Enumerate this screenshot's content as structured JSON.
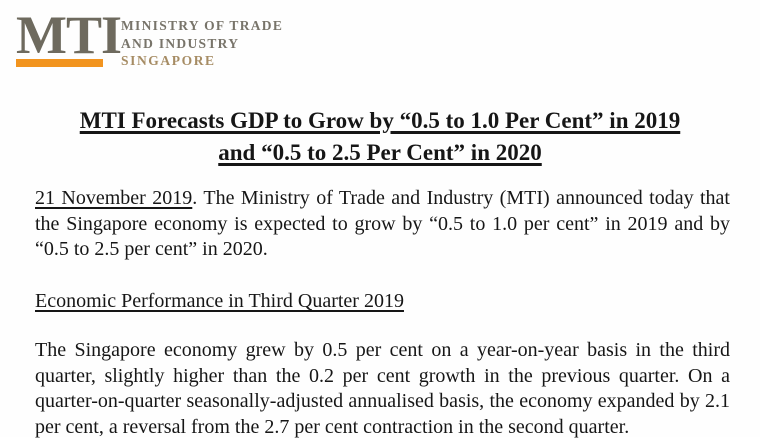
{
  "logo": {
    "acronym": "MTI",
    "name_line1": "MINISTRY OF TRADE",
    "name_line2": "AND INDUSTRY",
    "country": "SINGAPORE",
    "colors": {
      "bar": "#f2941f",
      "acronym": "#6e6a5e",
      "ministry_text": "#78746a",
      "country_text": "#a68c64"
    }
  },
  "document": {
    "title_line1": "MTI Forecasts GDP to Grow by “0.5 to 1.0 Per Cent” in 2019",
    "title_line2": "and “0.5 to 2.5 Per Cent” in 2020",
    "date": "21 November 2019",
    "lead_text": ". The Ministry of Trade and Industry (MTI) announced today that the Singapore economy is expected to grow by “0.5 to 1.0 per cent” in 2019 and by “0.5 to 2.5 per cent” in 2020.",
    "section_heading": "Economic Performance in Third Quarter 2019",
    "body_text": "The Singapore economy grew by 0.5 per cent on a year-on-year basis in the third quarter, slightly higher than the 0.2 per cent growth in the previous quarter. On a quarter-on-quarter seasonally-adjusted annualised basis, the economy expanded by 2.1 per cent, a reversal from the 2.7 per cent contraction in the second quarter."
  }
}
